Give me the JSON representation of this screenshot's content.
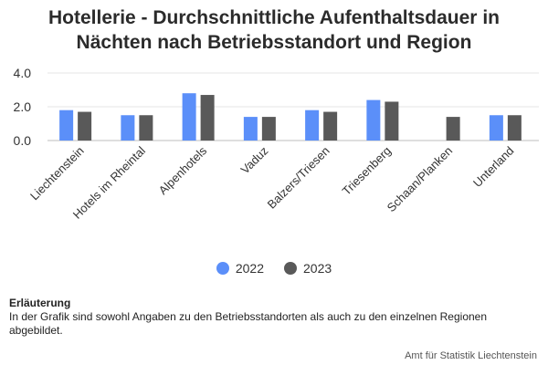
{
  "title_lines": [
    "Hotellerie - Durchschnittliche Aufenthaltsdauer in",
    "Nächten nach Betriebsstandort und Region"
  ],
  "colors": {
    "2022": "#5b8ff9",
    "2023": "#595959",
    "grid": "#e6e6e6"
  },
  "chart_data": {
    "type": "bar",
    "title": "Hotellerie - Durchschnittliche Aufenthaltsdauer in Nächten nach Betriebsstandort und Region",
    "categories": [
      "Liechtenstein",
      "Hotels im Rheintal",
      "Alpenhotels",
      "Vaduz",
      "Balzers/Triesen",
      "Triesenberg",
      "Schaan/Planken",
      "Unterland"
    ],
    "series": [
      {
        "name": "2022",
        "values": [
          1.8,
          1.5,
          2.8,
          1.4,
          1.8,
          2.4,
          null,
          1.5
        ]
      },
      {
        "name": "2023",
        "values": [
          1.7,
          1.5,
          2.7,
          1.4,
          1.7,
          2.3,
          1.4,
          1.5
        ]
      }
    ],
    "yticks": [
      "0.0",
      "2.0",
      "4.0"
    ],
    "ylim": [
      0,
      4
    ],
    "grid": true,
    "legend_position": "bottom"
  },
  "note": {
    "heading": "Erläuterung",
    "text": "In der Grafik sind sowohl Angaben zu den Betriebsstandorten als auch zu den einzelnen Regionen abgebildet."
  },
  "source": "Amt für Statistik Liechtenstein"
}
